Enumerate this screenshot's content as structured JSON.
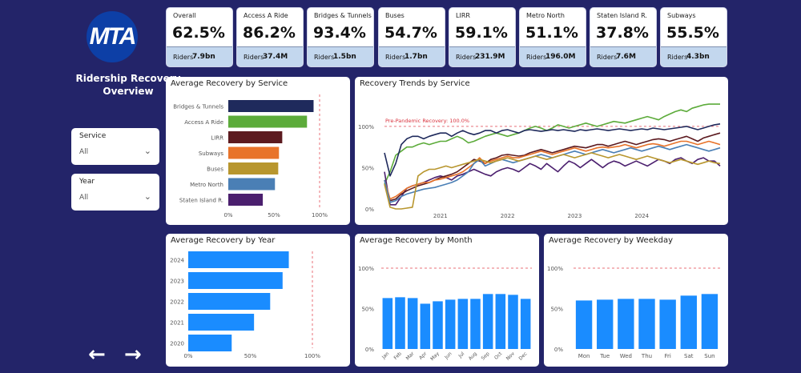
{
  "sidebar": {
    "logo_text": "MTA",
    "title_line1": "Ridership Recovery",
    "title_line2": "Overview",
    "filters": [
      {
        "label": "Service",
        "value": "All"
      },
      {
        "label": "Year",
        "value": "All"
      }
    ],
    "nav": {
      "prev": "←",
      "next": "→"
    }
  },
  "kpis": [
    {
      "name": "Overall",
      "pct": "62.5%",
      "riders_label": "Riders",
      "riders": "7.9bn"
    },
    {
      "name": "Access A Ride",
      "pct": "86.2%",
      "riders_label": "Riders",
      "riders": "37.4M"
    },
    {
      "name": "Bridges & Tunnels",
      "pct": "93.4%",
      "riders_label": "Riders",
      "riders": "1.5bn"
    },
    {
      "name": "Buses",
      "pct": "54.7%",
      "riders_label": "Riders",
      "riders": "1.7bn"
    },
    {
      "name": "LIRR",
      "pct": "59.1%",
      "riders_label": "Riders",
      "riders": "231.9M"
    },
    {
      "name": "Metro North",
      "pct": "51.1%",
      "riders_label": "Riders",
      "riders": "196.0M"
    },
    {
      "name": "Staten Island R.",
      "pct": "37.8%",
      "riders_label": "Riders",
      "riders": "7.6M"
    },
    {
      "name": "Subways",
      "pct": "55.5%",
      "riders_label": "Riders",
      "riders": "4.3bn"
    }
  ],
  "colors": {
    "background": "#232469",
    "bar_blue": "#1a8cff",
    "reference_line": "#e8707a",
    "kpi_footer": "#c3d7ee"
  },
  "chart_data": [
    {
      "type": "bar",
      "orientation": "horizontal",
      "title": "Average Recovery by Service",
      "categories": [
        "Bridges & Tunnels",
        "Access A Ride",
        "LIRR",
        "Subways",
        "Buses",
        "Metro North",
        "Staten Island R."
      ],
      "values": [
        93.4,
        86.2,
        59.1,
        55.5,
        54.7,
        51.1,
        37.8
      ],
      "colors": [
        "#1f2a5c",
        "#5cab3a",
        "#5c1a1f",
        "#e8732a",
        "#b8962e",
        "#4a7fb5",
        "#4b1f6e"
      ],
      "xticks": [
        "0%",
        "50%",
        "100%"
      ],
      "xlim": [
        0,
        100
      ],
      "reference": 100
    },
    {
      "type": "line",
      "title": "Recovery Trends by Service",
      "x_ticks": [
        "2021",
        "2022",
        "2023",
        "2024"
      ],
      "y_ticks": [
        "0%",
        "50%",
        "100%"
      ],
      "ylim": [
        0,
        130
      ],
      "reference": 100,
      "reference_label": "Pre-Pandemic Recovery: 100.0%",
      "x_start": "2020-03",
      "series": [
        {
          "color": "#5cab3a",
          "values": [
            30,
            45,
            65,
            70,
            75,
            75,
            78,
            80,
            78,
            80,
            82,
            82,
            85,
            88,
            85,
            80,
            82,
            85,
            88,
            90,
            92,
            90,
            88,
            90,
            92,
            95,
            98,
            100,
            98,
            95,
            98,
            102,
            100,
            98,
            100,
            102,
            104,
            102,
            100,
            102,
            104,
            106,
            105,
            104,
            106,
            108,
            110,
            112,
            110,
            108,
            112,
            115,
            118,
            120,
            118,
            122,
            124,
            126,
            127,
            127,
            127
          ]
        },
        {
          "color": "#1f2a5c",
          "values": [
            68,
            40,
            55,
            78,
            85,
            88,
            88,
            85,
            88,
            90,
            92,
            92,
            88,
            92,
            95,
            92,
            90,
            92,
            95,
            95,
            92,
            95,
            96,
            94,
            92,
            95,
            96,
            95,
            94,
            95,
            96,
            95,
            96,
            95,
            94,
            96,
            95,
            96,
            97,
            96,
            95,
            96,
            97,
            96,
            95,
            96,
            97,
            96,
            98,
            97,
            96,
            97,
            98,
            99,
            100,
            98,
            96,
            98,
            100,
            102,
            103
          ]
        },
        {
          "color": "#4b1f6e",
          "values": [
            45,
            5,
            5,
            15,
            25,
            28,
            30,
            32,
            35,
            38,
            40,
            38,
            35,
            40,
            42,
            45,
            48,
            45,
            42,
            40,
            45,
            48,
            50,
            48,
            45,
            50,
            55,
            52,
            48,
            55,
            50,
            45,
            52,
            58,
            55,
            50,
            55,
            60,
            55,
            50,
            55,
            58,
            56,
            52,
            55,
            58,
            55,
            52,
            56,
            60,
            58,
            55,
            60,
            62,
            58,
            55,
            60,
            62,
            58,
            58,
            52
          ]
        },
        {
          "color": "#5c1a1f",
          "values": [
            35,
            10,
            12,
            18,
            22,
            25,
            28,
            30,
            32,
            35,
            38,
            40,
            42,
            45,
            50,
            55,
            60,
            58,
            55,
            60,
            62,
            65,
            66,
            65,
            64,
            65,
            68,
            70,
            72,
            70,
            68,
            70,
            72,
            74,
            76,
            75,
            74,
            76,
            78,
            78,
            76,
            78,
            80,
            82,
            80,
            78,
            80,
            82,
            84,
            85,
            84,
            82,
            84,
            86,
            88,
            85,
            82,
            86,
            88,
            90,
            92
          ]
        },
        {
          "color": "#e8732a",
          "values": [
            35,
            12,
            15,
            20,
            25,
            28,
            30,
            32,
            32,
            35,
            36,
            38,
            40,
            42,
            45,
            50,
            55,
            62,
            55,
            58,
            60,
            62,
            64,
            62,
            62,
            64,
            66,
            68,
            70,
            68,
            66,
            68,
            70,
            72,
            74,
            72,
            70,
            72,
            74,
            75,
            74,
            75,
            76,
            78,
            76,
            74,
            76,
            78,
            79,
            78,
            76,
            78,
            80,
            82,
            82,
            80,
            78,
            80,
            82,
            80,
            78
          ]
        },
        {
          "color": "#4a7fb5",
          "values": [
            35,
            8,
            10,
            15,
            18,
            20,
            22,
            24,
            25,
            26,
            28,
            30,
            32,
            35,
            40,
            45,
            55,
            60,
            52,
            55,
            58,
            60,
            58,
            56,
            58,
            60,
            62,
            64,
            66,
            64,
            62,
            64,
            66,
            68,
            70,
            68,
            66,
            68,
            70,
            72,
            70,
            68,
            70,
            72,
            74,
            72,
            70,
            72,
            74,
            76,
            74,
            72,
            74,
            76,
            78,
            76,
            74,
            72,
            70,
            72,
            74
          ]
        },
        {
          "color": "#b8962e",
          "values": [
            30,
            2,
            0,
            0,
            1,
            2,
            40,
            45,
            48,
            48,
            50,
            52,
            50,
            52,
            54,
            56,
            58,
            60,
            58,
            56,
            58,
            60,
            62,
            60,
            58,
            60,
            62,
            64,
            62,
            60,
            62,
            64,
            66,
            64,
            62,
            64,
            66,
            68,
            66,
            64,
            62,
            64,
            66,
            64,
            62,
            60,
            62,
            64,
            62,
            60,
            58,
            56,
            58,
            60,
            58,
            56,
            54,
            56,
            58,
            56,
            55
          ]
        }
      ]
    },
    {
      "type": "bar",
      "orientation": "horizontal",
      "title": "Average Recovery by Year",
      "categories": [
        "2024",
        "2023",
        "2022",
        "2021",
        "2020"
      ],
      "values": [
        81,
        76,
        66,
        53,
        35
      ],
      "xticks": [
        "0%",
        "50%",
        "100%"
      ],
      "xlim": [
        0,
        100
      ],
      "reference": 100
    },
    {
      "type": "bar",
      "title": "Average Recovery by Month",
      "categories": [
        "Jan",
        "Feb",
        "Mar",
        "Apr",
        "May",
        "Jun",
        "Jul",
        "Aug",
        "Sep",
        "Oct",
        "Nov",
        "Dec"
      ],
      "values": [
        63,
        64,
        63,
        56,
        59,
        61,
        62,
        62,
        68,
        68,
        67,
        62
      ],
      "yticks": [
        "0%",
        "50%",
        "100%"
      ],
      "ylim": [
        0,
        100
      ],
      "reference": 100
    },
    {
      "type": "bar",
      "title": "Average Recovery by Weekday",
      "categories": [
        "Mon",
        "Tue",
        "Wed",
        "Thu",
        "Fri",
        "Sat",
        "Sun"
      ],
      "values": [
        60,
        61,
        62,
        62,
        61,
        66,
        68
      ],
      "yticks": [
        "0%",
        "50%",
        "100%"
      ],
      "ylim": [
        0,
        100
      ],
      "reference": 100
    }
  ]
}
